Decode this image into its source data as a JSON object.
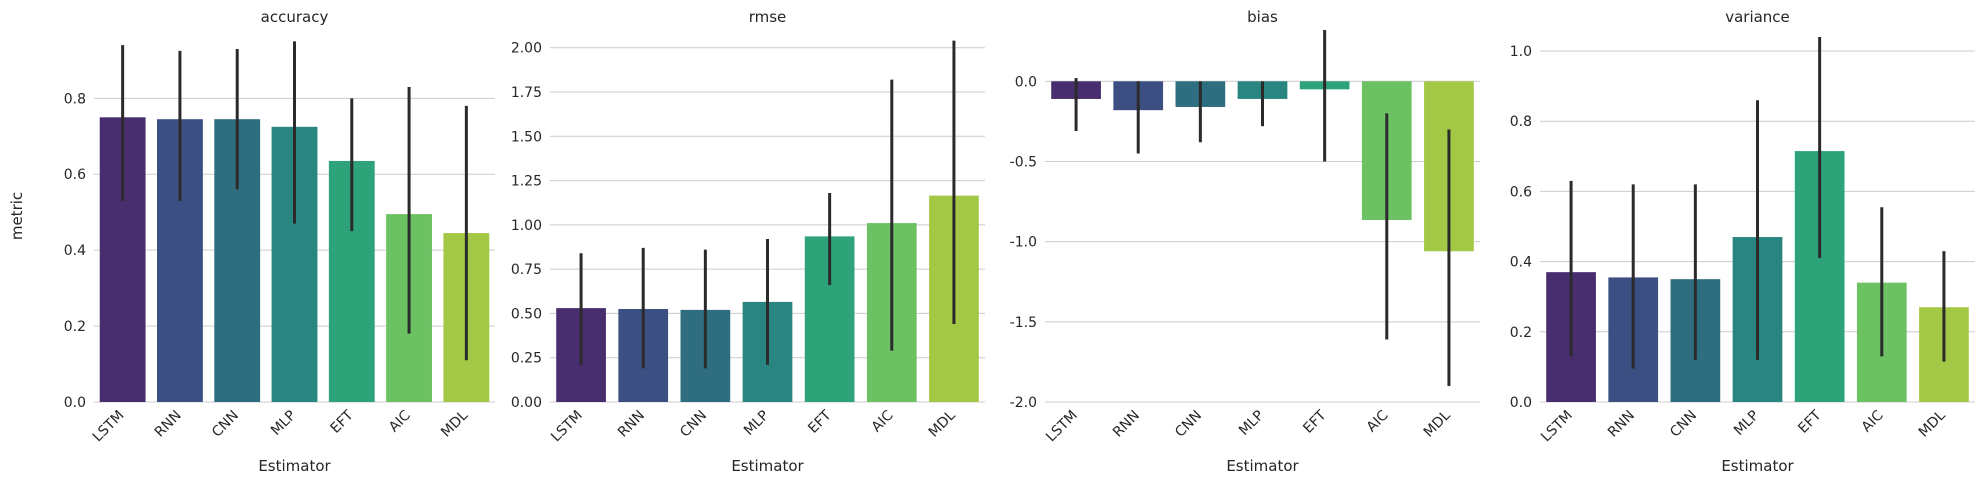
{
  "chart_data": [
    {
      "type": "bar",
      "title": "accuracy",
      "xlabel": "Estimator",
      "ylabel": "metric",
      "categories": [
        "LSTM",
        "RNN",
        "CNN",
        "MLP",
        "EFT",
        "AIC",
        "MDL"
      ],
      "values": [
        0.75,
        0.745,
        0.745,
        0.725,
        0.635,
        0.495,
        0.445
      ],
      "err_low": [
        0.53,
        0.53,
        0.56,
        0.47,
        0.45,
        0.18,
        0.11
      ],
      "err_high": [
        0.94,
        0.925,
        0.93,
        0.95,
        0.8,
        0.83,
        0.78
      ],
      "ylim": [
        0.0,
        0.98
      ],
      "yticks": [
        "0.0",
        "0.2",
        "0.4",
        "0.6",
        "0.8"
      ],
      "ytick_values": [
        0.0,
        0.2,
        0.4,
        0.6,
        0.8
      ],
      "grid": true
    },
    {
      "type": "bar",
      "title": "rmse",
      "xlabel": "Estimator",
      "ylabel": "",
      "categories": [
        "LSTM",
        "RNN",
        "CNN",
        "MLP",
        "EFT",
        "AIC",
        "MDL"
      ],
      "values": [
        0.53,
        0.525,
        0.52,
        0.565,
        0.935,
        1.01,
        1.165
      ],
      "err_low": [
        0.21,
        0.19,
        0.19,
        0.21,
        0.66,
        0.29,
        0.44
      ],
      "err_high": [
        0.84,
        0.87,
        0.86,
        0.92,
        1.18,
        1.82,
        2.04
      ],
      "ylim": [
        0.0,
        2.1
      ],
      "yticks": [
        "0.00",
        "0.25",
        "0.50",
        "0.75",
        "1.00",
        "1.25",
        "1.50",
        "1.75",
        "2.00"
      ],
      "ytick_values": [
        0.0,
        0.25,
        0.5,
        0.75,
        1.0,
        1.25,
        1.5,
        1.75,
        2.0
      ],
      "grid": true
    },
    {
      "type": "bar",
      "title": "bias",
      "xlabel": "Estimator",
      "ylabel": "",
      "categories": [
        "LSTM",
        "RNN",
        "CNN",
        "MLP",
        "EFT",
        "AIC",
        "MDL"
      ],
      "values": [
        -0.11,
        -0.18,
        -0.16,
        -0.11,
        -0.05,
        -0.865,
        -1.06
      ],
      "err_low": [
        -0.31,
        -0.45,
        -0.38,
        -0.28,
        -0.5,
        -1.61,
        -1.9
      ],
      "err_high": [
        0.02,
        0.0,
        0.0,
        0.0,
        0.32,
        -0.2,
        -0.3
      ],
      "ylim": [
        -2.0,
        0.32
      ],
      "yticks": [
        "-2.0",
        "-1.5",
        "-1.0",
        "-0.5",
        "0.0"
      ],
      "ytick_values": [
        -2.0,
        -1.5,
        -1.0,
        -0.5,
        0.0
      ],
      "grid": true
    },
    {
      "type": "bar",
      "title": "variance",
      "xlabel": "Estimator",
      "ylabel": "",
      "categories": [
        "LSTM",
        "RNN",
        "CNN",
        "MLP",
        "EFT",
        "AIC",
        "MDL"
      ],
      "values": [
        0.37,
        0.355,
        0.35,
        0.47,
        0.715,
        0.34,
        0.27
      ],
      "err_low": [
        0.13,
        0.095,
        0.12,
        0.12,
        0.41,
        0.13,
        0.115
      ],
      "err_high": [
        0.63,
        0.62,
        0.62,
        0.86,
        1.04,
        0.555,
        0.43
      ],
      "ylim": [
        0.0,
        1.06
      ],
      "yticks": [
        "0.0",
        "0.2",
        "0.4",
        "0.6",
        "0.8",
        "1.0"
      ],
      "ytick_values": [
        0.0,
        0.2,
        0.4,
        0.6,
        0.8,
        1.0
      ],
      "grid": true
    }
  ],
  "colors": [
    "#482e6e",
    "#3c4f83",
    "#2f6d81",
    "#288580",
    "#2ea37a",
    "#6cc163",
    "#a3c846"
  ]
}
